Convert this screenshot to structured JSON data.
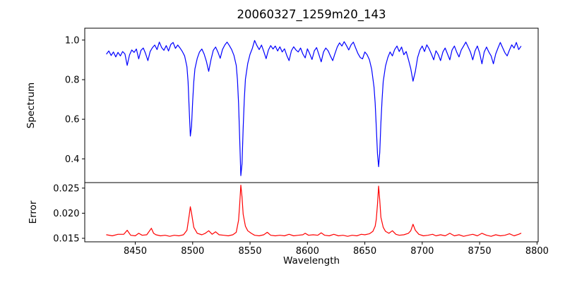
{
  "chart_data": {
    "type": "line",
    "title": "20060327_1259m20_143",
    "xlabel": "Wavelength",
    "grid": false,
    "legend": "none",
    "xlim": [
      8406,
      8801
    ],
    "xticks": [
      8450,
      8500,
      8550,
      8600,
      8650,
      8700,
      8750,
      8800
    ],
    "xtick_labels": [
      "8450",
      "8500",
      "8550",
      "8600",
      "8650",
      "8700",
      "8750",
      "8800"
    ],
    "panels": [
      {
        "name": "spectrum",
        "ylabel": "Spectrum",
        "ylim": [
          0.28,
          1.06
        ],
        "yticks": [
          0.4,
          0.6,
          0.8,
          1.0
        ],
        "ytick_labels": [
          "0.4",
          "0.6",
          "0.8",
          "1.0"
        ],
        "line_color": "#0000ff",
        "series": {
          "x": [
            8425,
            8427,
            8429,
            8431,
            8433,
            8435,
            8437,
            8439,
            8441,
            8443,
            8445,
            8447,
            8449,
            8451,
            8453,
            8455,
            8457,
            8459,
            8461,
            8463,
            8465,
            8467,
            8469,
            8471,
            8473,
            8475,
            8477,
            8479,
            8481,
            8483,
            8485,
            8487,
            8489,
            8491,
            8493,
            8495,
            8496,
            8497,
            8498,
            8499,
            8500,
            8501,
            8502,
            8504,
            8506,
            8508,
            8510,
            8512,
            8514,
            8516,
            8518,
            8520,
            8522,
            8524,
            8526,
            8528,
            8530,
            8532,
            8534,
            8536,
            8538,
            8539,
            8540,
            8541,
            8542,
            8543,
            8544,
            8545,
            8546,
            8548,
            8550,
            8552,
            8554,
            8556,
            8558,
            8560,
            8562,
            8564,
            8566,
            8568,
            8570,
            8572,
            8574,
            8576,
            8578,
            8580,
            8582,
            8584,
            8586,
            8588,
            8590,
            8592,
            8594,
            8596,
            8598,
            8600,
            8602,
            8604,
            8606,
            8608,
            8610,
            8612,
            8614,
            8616,
            8618,
            8620,
            8622,
            8624,
            8626,
            8628,
            8630,
            8632,
            8634,
            8636,
            8638,
            8640,
            8642,
            8644,
            8646,
            8648,
            8650,
            8652,
            8654,
            8656,
            8658,
            8659,
            8660,
            8661,
            8662,
            8663,
            8664,
            8665,
            8666,
            8668,
            8670,
            8672,
            8674,
            8676,
            8678,
            8680,
            8682,
            8684,
            8686,
            8688,
            8690,
            8692,
            8694,
            8696,
            8698,
            8700,
            8702,
            8704,
            8706,
            8708,
            8710,
            8712,
            8714,
            8716,
            8718,
            8720,
            8722,
            8724,
            8726,
            8728,
            8730,
            8732,
            8734,
            8736,
            8738,
            8740,
            8742,
            8744,
            8746,
            8748,
            8750,
            8752,
            8754,
            8756,
            8758,
            8760,
            8762,
            8764,
            8766,
            8768,
            8770,
            8772,
            8774,
            8776,
            8778,
            8780,
            8782,
            8784,
            8786
          ],
          "y": [
            0.93,
            0.945,
            0.922,
            0.94,
            0.915,
            0.938,
            0.92,
            0.942,
            0.93,
            0.872,
            0.925,
            0.95,
            0.938,
            0.955,
            0.905,
            0.948,
            0.96,
            0.932,
            0.896,
            0.942,
            0.962,
            0.975,
            0.952,
            0.99,
            0.962,
            0.948,
            0.972,
            0.945,
            0.978,
            0.988,
            0.958,
            0.975,
            0.96,
            0.942,
            0.92,
            0.865,
            0.79,
            0.65,
            0.515,
            0.565,
            0.69,
            0.79,
            0.855,
            0.908,
            0.94,
            0.955,
            0.93,
            0.892,
            0.842,
            0.902,
            0.948,
            0.965,
            0.94,
            0.908,
            0.952,
            0.975,
            0.99,
            0.972,
            0.952,
            0.922,
            0.872,
            0.8,
            0.68,
            0.5,
            0.315,
            0.375,
            0.555,
            0.7,
            0.802,
            0.882,
            0.928,
            0.958,
            0.998,
            0.972,
            0.952,
            0.975,
            0.942,
            0.906,
            0.95,
            0.972,
            0.955,
            0.97,
            0.945,
            0.966,
            0.94,
            0.956,
            0.922,
            0.896,
            0.946,
            0.966,
            0.95,
            0.94,
            0.96,
            0.93,
            0.91,
            0.956,
            0.93,
            0.902,
            0.946,
            0.962,
            0.926,
            0.89,
            0.94,
            0.96,
            0.946,
            0.92,
            0.896,
            0.932,
            0.966,
            0.986,
            0.97,
            0.992,
            0.972,
            0.95,
            0.976,
            0.99,
            0.96,
            0.932,
            0.912,
            0.905,
            0.94,
            0.926,
            0.9,
            0.852,
            0.762,
            0.682,
            0.56,
            0.425,
            0.36,
            0.432,
            0.58,
            0.7,
            0.79,
            0.868,
            0.912,
            0.94,
            0.92,
            0.952,
            0.97,
            0.942,
            0.965,
            0.926,
            0.942,
            0.902,
            0.856,
            0.792,
            0.842,
            0.912,
            0.95,
            0.97,
            0.942,
            0.976,
            0.956,
            0.93,
            0.9,
            0.946,
            0.926,
            0.896,
            0.94,
            0.96,
            0.93,
            0.9,
            0.95,
            0.97,
            0.94,
            0.915,
            0.95,
            0.97,
            0.99,
            0.965,
            0.94,
            0.9,
            0.945,
            0.97,
            0.935,
            0.88,
            0.94,
            0.965,
            0.94,
            0.92,
            0.88,
            0.93,
            0.96,
            0.988,
            0.962,
            0.936,
            0.92,
            0.95,
            0.976,
            0.96,
            0.988,
            0.952,
            0.968
          ]
        }
      },
      {
        "name": "error",
        "ylabel": "Error",
        "ylim": [
          0.0143,
          0.0261
        ],
        "yticks": [
          0.015,
          0.02,
          0.025
        ],
        "ytick_labels": [
          "0.015",
          "0.020",
          "0.025"
        ],
        "line_color": "#ff0000",
        "series": {
          "x": [
            8425,
            8430,
            8435,
            8440,
            8443,
            8446,
            8450,
            8453,
            8456,
            8460,
            8464,
            8466,
            8468,
            8472,
            8476,
            8480,
            8484,
            8488,
            8492,
            8495,
            8497,
            8498,
            8499,
            8501,
            8504,
            8508,
            8511,
            8514,
            8517,
            8520,
            8523,
            8527,
            8531,
            8535,
            8538,
            8540,
            8541,
            8542,
            8543,
            8544,
            8546,
            8548,
            8551,
            8554,
            8558,
            8562,
            8565,
            8568,
            8572,
            8576,
            8580,
            8584,
            8588,
            8592,
            8596,
            8598,
            8601,
            8605,
            8609,
            8612,
            8615,
            8619,
            8623,
            8627,
            8631,
            8635,
            8639,
            8643,
            8647,
            8650,
            8654,
            8657,
            8659,
            8660,
            8661,
            8662,
            8663,
            8664,
            8666,
            8668,
            8671,
            8674,
            8677,
            8680,
            8684,
            8688,
            8690,
            8692,
            8694,
            8697,
            8701,
            8705,
            8709,
            8712,
            8716,
            8720,
            8724,
            8728,
            8732,
            8736,
            8740,
            8744,
            8748,
            8752,
            8756,
            8760,
            8764,
            8768,
            8772,
            8776,
            8780,
            8784,
            8786
          ],
          "y": [
            0.0157,
            0.0155,
            0.0158,
            0.0158,
            0.0166,
            0.0156,
            0.0155,
            0.016,
            0.0156,
            0.0157,
            0.017,
            0.016,
            0.0157,
            0.0155,
            0.0156,
            0.0154,
            0.0156,
            0.0155,
            0.0157,
            0.0166,
            0.0196,
            0.0213,
            0.02,
            0.0172,
            0.016,
            0.0157,
            0.016,
            0.0165,
            0.0158,
            0.0163,
            0.0157,
            0.0156,
            0.0155,
            0.0157,
            0.0162,
            0.0186,
            0.0218,
            0.0256,
            0.0232,
            0.0198,
            0.0174,
            0.0165,
            0.016,
            0.0156,
            0.0155,
            0.0157,
            0.0162,
            0.0156,
            0.0155,
            0.0156,
            0.0155,
            0.0158,
            0.0155,
            0.0156,
            0.0157,
            0.016,
            0.0156,
            0.0157,
            0.0156,
            0.0161,
            0.0156,
            0.0155,
            0.0158,
            0.0155,
            0.0156,
            0.0154,
            0.0156,
            0.0155,
            0.0158,
            0.0157,
            0.0159,
            0.0164,
            0.0174,
            0.0188,
            0.0218,
            0.0254,
            0.0226,
            0.0192,
            0.0172,
            0.0164,
            0.016,
            0.0165,
            0.0158,
            0.0156,
            0.0157,
            0.016,
            0.0165,
            0.0178,
            0.0166,
            0.0158,
            0.0155,
            0.0156,
            0.0158,
            0.0155,
            0.0157,
            0.0155,
            0.016,
            0.0155,
            0.0157,
            0.0154,
            0.0156,
            0.0158,
            0.0155,
            0.016,
            0.0156,
            0.0154,
            0.0157,
            0.0155,
            0.0156,
            0.0159,
            0.0155,
            0.0158,
            0.016
          ]
        }
      }
    ],
    "colors": {
      "spectrum_line": "#0000ff",
      "error_line": "#ff0000",
      "axes": "#000000",
      "background": "#ffffff"
    }
  }
}
